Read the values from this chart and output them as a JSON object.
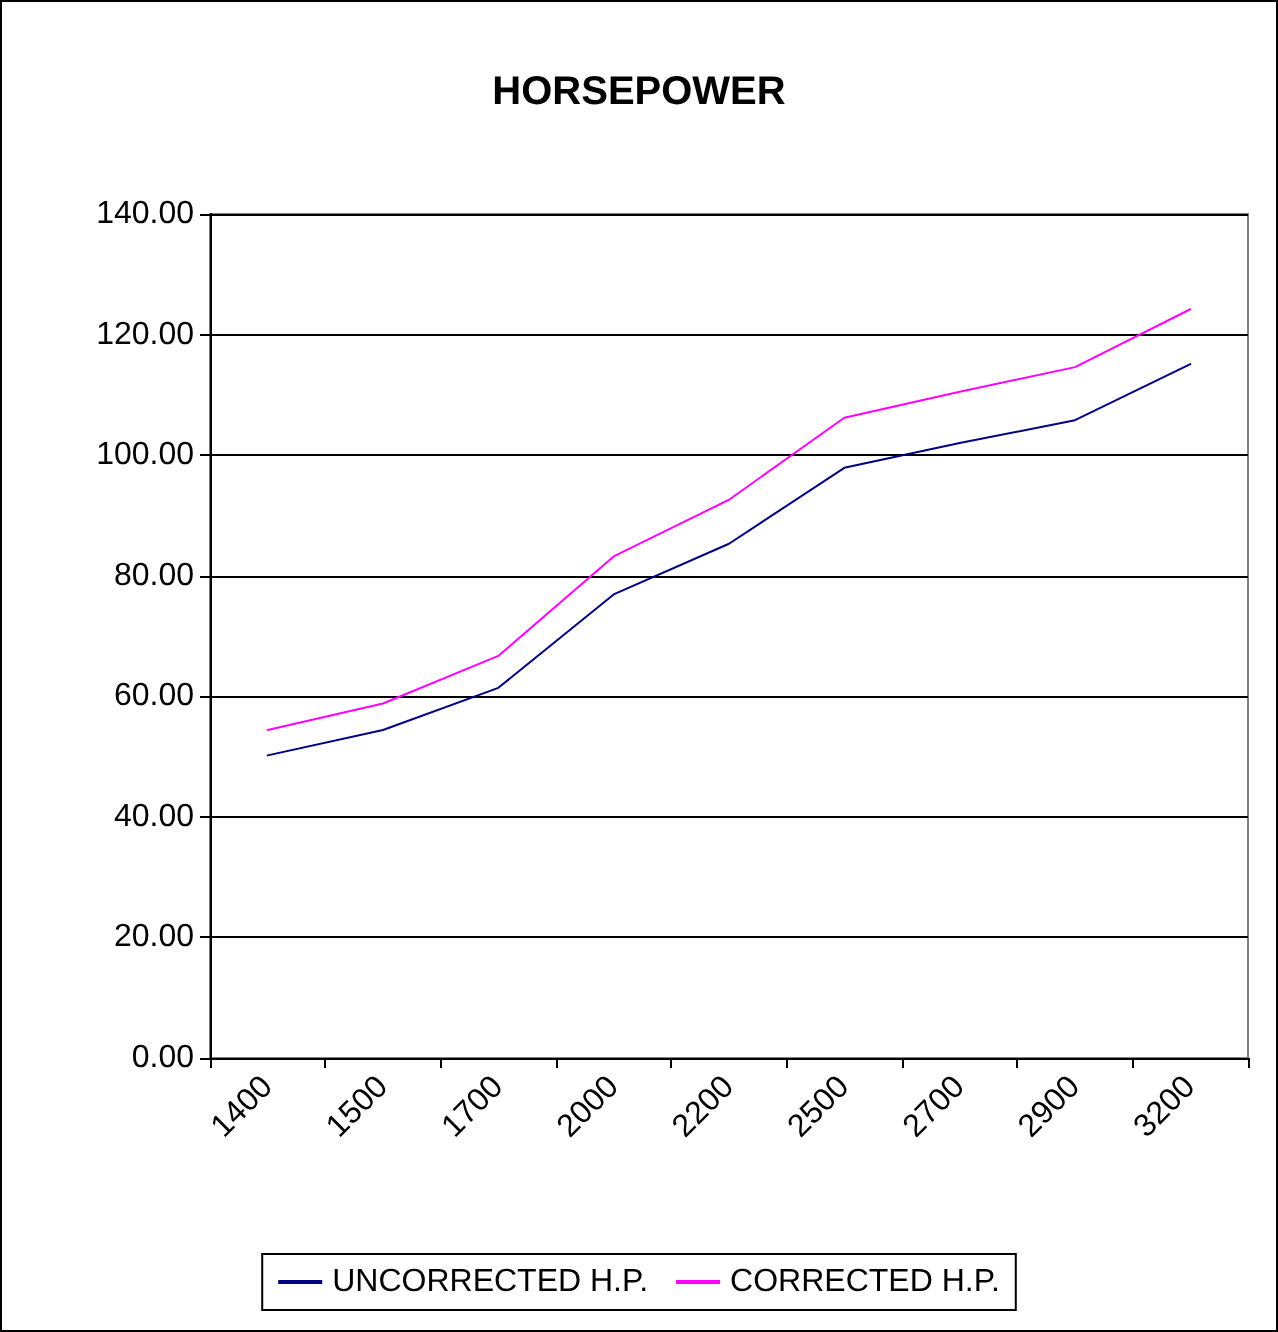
{
  "chart_data": {
    "type": "line",
    "title": "HORSEPOWER",
    "categories": [
      "1400",
      "1500",
      "1700",
      "2000",
      "2200",
      "2500",
      "2700",
      "2900",
      "3200"
    ],
    "series": [
      {
        "name": "UNCORRECTED H.P.",
        "color": "#000080",
        "values": [
          50.2,
          54.4,
          61.4,
          76.9,
          85.3,
          97.9,
          102.0,
          105.8,
          115.1
        ]
      },
      {
        "name": "CORRECTED H.P.",
        "color": "#ff00ff",
        "values": [
          54.4,
          58.8,
          66.7,
          83.2,
          92.6,
          106.2,
          110.5,
          114.6,
          124.2
        ]
      }
    ],
    "ylim": [
      0,
      140
    ],
    "yticks": [
      {
        "value": 0,
        "label": "0.00"
      },
      {
        "value": 20,
        "label": "20.00"
      },
      {
        "value": 40,
        "label": "40.00"
      },
      {
        "value": 60,
        "label": "60.00"
      },
      {
        "value": 80,
        "label": "80.00"
      },
      {
        "value": 100,
        "label": "100.00"
      },
      {
        "value": 120,
        "label": "120.00"
      },
      {
        "value": 140,
        "label": "140.00"
      }
    ],
    "grid": "y",
    "legend": "bottom",
    "marker": "none",
    "line_style": "solid"
  }
}
